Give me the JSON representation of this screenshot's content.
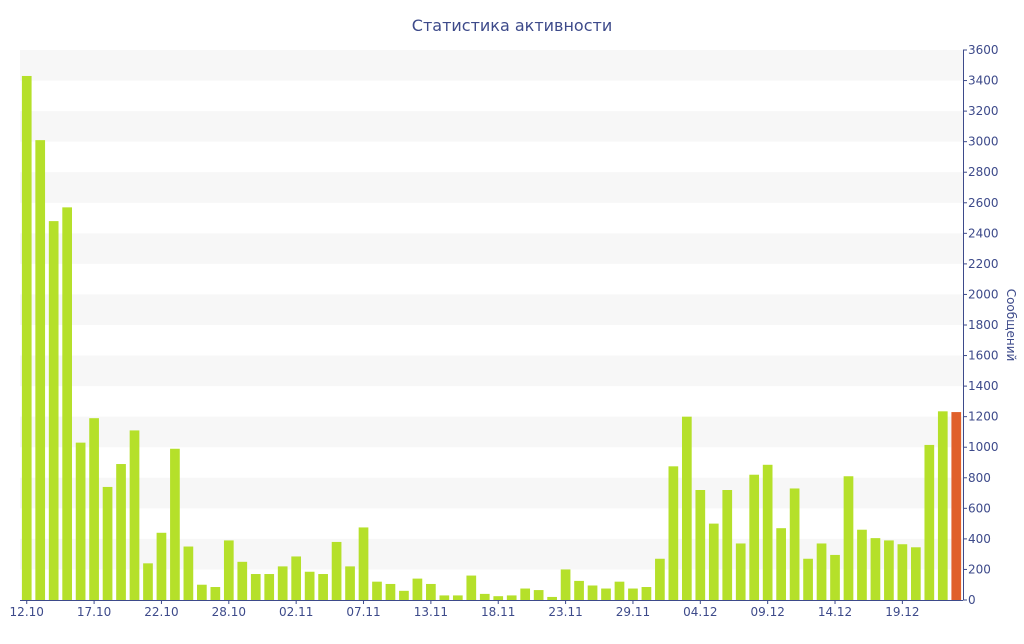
{
  "chart_data": {
    "type": "bar",
    "title": "Статистика активности",
    "ylabel": "Сообщений",
    "xlabel": "",
    "ylim": [
      0,
      3600
    ],
    "y_ticks": [
      0,
      200,
      400,
      600,
      800,
      1000,
      1200,
      1400,
      1600,
      1800,
      2000,
      2200,
      2400,
      2600,
      2800,
      3000,
      3200,
      3400,
      3600
    ],
    "y_axis_side": "right",
    "grid": "alternating horizontal bands",
    "x_tick_labels": [
      {
        "index": 0,
        "label": "12.10"
      },
      {
        "index": 5,
        "label": "17.10"
      },
      {
        "index": 10,
        "label": "22.10"
      },
      {
        "index": 15,
        "label": "28.10"
      },
      {
        "index": 20,
        "label": "02.11"
      },
      {
        "index": 25,
        "label": "07.11"
      },
      {
        "index": 30,
        "label": "13.11"
      },
      {
        "index": 35,
        "label": "18.11"
      },
      {
        "index": 40,
        "label": "23.11"
      },
      {
        "index": 45,
        "label": "29.11"
      },
      {
        "index": 50,
        "label": "04.12"
      },
      {
        "index": 55,
        "label": "09.12"
      },
      {
        "index": 60,
        "label": "14.12"
      },
      {
        "index": 65,
        "label": "19.12"
      }
    ],
    "values": [
      3430,
      3010,
      2480,
      2570,
      1030,
      1190,
      740,
      890,
      1110,
      240,
      440,
      990,
      350,
      100,
      85,
      390,
      250,
      170,
      170,
      220,
      285,
      185,
      170,
      380,
      220,
      475,
      120,
      105,
      60,
      140,
      105,
      30,
      30,
      160,
      40,
      25,
      30,
      75,
      65,
      20,
      200,
      125,
      95,
      75,
      120,
      75,
      85,
      270,
      875,
      1200,
      720,
      500,
      720,
      370,
      820,
      885,
      470,
      730,
      270,
      370,
      295,
      810,
      460,
      405,
      390,
      365,
      345,
      1015,
      1235,
      1230
    ],
    "highlight_index": 69,
    "colors": {
      "bar": "#b5e02a",
      "highlight_bar": "#e0602a",
      "band": "#f7f7f7",
      "axis": "#3d4a8a",
      "text": "#3d4a8a"
    }
  }
}
